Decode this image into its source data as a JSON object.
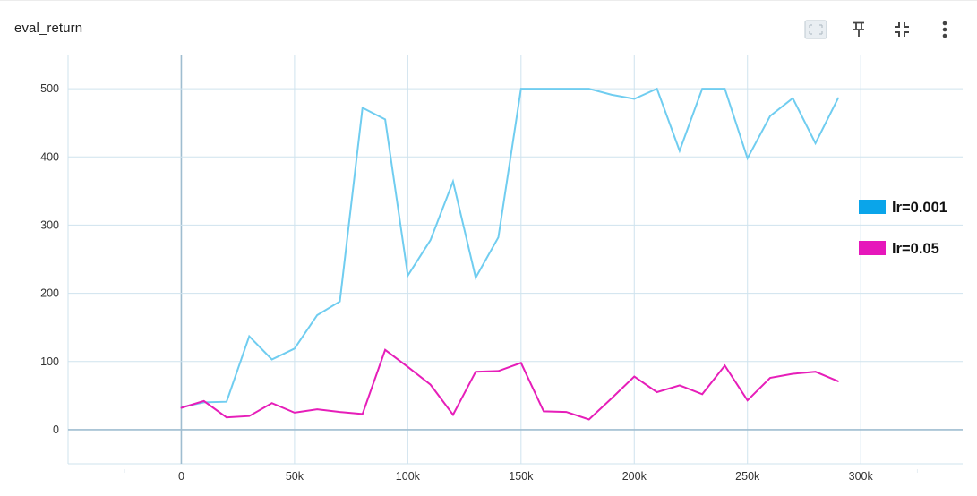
{
  "card": {
    "title": "eval_return",
    "toolbar": {
      "fit_icon": "fit-to-data-icon",
      "pin_icon": "pin-icon",
      "collapse_icon": "collapse-icon",
      "menu_icon": "more-vert-icon"
    }
  },
  "colors": {
    "lr_0_001": "#70cdf0",
    "lr_0_05": "#e61eb9",
    "legend_lr_0_001": "#0aa5ea",
    "legend_lr_0_05": "#e617bb",
    "grid": "#cfe3ee",
    "axis_zero": "#9fbdd0"
  },
  "chart_data": {
    "type": "line",
    "title": "eval_return",
    "xlabel": "",
    "ylabel": "",
    "xlim": [
      -50000,
      345000
    ],
    "ylim": [
      -50,
      550
    ],
    "x_ticks": [
      0,
      50000,
      100000,
      150000,
      200000,
      250000,
      300000
    ],
    "x_tick_labels": [
      "0",
      "50k",
      "100k",
      "150k",
      "200k",
      "250k",
      "300k"
    ],
    "y_ticks": [
      0,
      100,
      200,
      300,
      400,
      500
    ],
    "y_tick_labels": [
      "0",
      "100",
      "200",
      "300",
      "400",
      "500"
    ],
    "grid": true,
    "legend_position": "right",
    "series": [
      {
        "name": "lr=0.001",
        "x": [
          0,
          10000,
          20000,
          30000,
          40000,
          50000,
          60000,
          70000,
          80000,
          90000,
          100000,
          110000,
          120000,
          130000,
          140000,
          150000,
          160000,
          170000,
          180000,
          190000,
          200000,
          210000,
          220000,
          230000,
          240000,
          250000,
          260000,
          270000,
          280000,
          290000
        ],
        "y": [
          33,
          40,
          41,
          137,
          103,
          119,
          168,
          188,
          472,
          455,
          226,
          278,
          364,
          223,
          282,
          500,
          500,
          500,
          500,
          491,
          485,
          500,
          409,
          500,
          500,
          398,
          460,
          486,
          420,
          486
        ]
      },
      {
        "name": "lr=0.05",
        "x": [
          0,
          10000,
          20000,
          30000,
          40000,
          50000,
          60000,
          70000,
          80000,
          90000,
          100000,
          110000,
          120000,
          130000,
          140000,
          150000,
          160000,
          170000,
          180000,
          190000,
          200000,
          210000,
          220000,
          230000,
          240000,
          250000,
          260000,
          270000,
          280000,
          290000
        ],
        "y": [
          32,
          42,
          18,
          20,
          39,
          25,
          30,
          26,
          23,
          117,
          92,
          66,
          22,
          85,
          86,
          98,
          27,
          26,
          15,
          46,
          78,
          55,
          65,
          52,
          94,
          43,
          76,
          82,
          85,
          71
        ]
      }
    ]
  }
}
